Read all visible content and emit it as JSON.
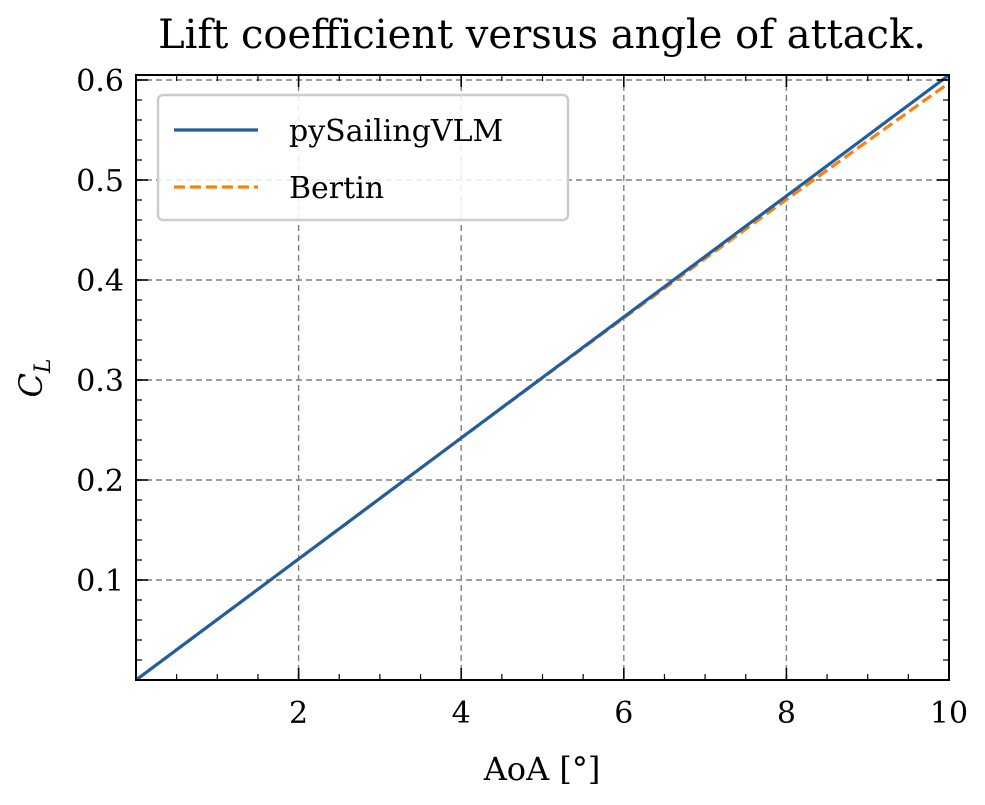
{
  "chart_data": {
    "type": "line",
    "title": "Lift coefficient versus angle of attack.",
    "xlabel": "AoA [°]",
    "ylabel": "C",
    "ylabel_subscript": "L",
    "xlim": [
      0,
      10
    ],
    "ylim": [
      0,
      0.605
    ],
    "xticks": [
      2,
      4,
      6,
      8,
      10
    ],
    "xtick_labels": [
      "2",
      "4",
      "6",
      "8",
      "10"
    ],
    "yticks": [
      0.1,
      0.2,
      0.3,
      0.4,
      0.5,
      0.6
    ],
    "ytick_labels": [
      "0.1",
      "0.2",
      "0.3",
      "0.4",
      "0.5",
      "0.6"
    ],
    "x_minor_step": 0.5,
    "y_minor_step": 0.02,
    "grid": true,
    "legend_position": "top-left",
    "series": [
      {
        "name": "pySailingVLM",
        "color": "#1f5fa0",
        "style": "solid",
        "x": [
          0,
          1,
          2,
          3,
          4,
          5,
          6,
          7,
          8,
          9,
          10
        ],
        "y": [
          0,
          0.0605,
          0.121,
          0.1815,
          0.242,
          0.3025,
          0.363,
          0.4235,
          0.484,
          0.5445,
          0.605
        ]
      },
      {
        "name": "Bertin",
        "color": "#ff7f0e",
        "style": "dashed",
        "x": [
          0,
          1,
          2,
          3,
          4,
          5,
          6,
          7,
          8,
          9,
          10
        ],
        "y": [
          0,
          0.0605,
          0.121,
          0.1815,
          0.242,
          0.3022,
          0.362,
          0.4215,
          0.4805,
          0.539,
          0.597
        ]
      }
    ]
  }
}
